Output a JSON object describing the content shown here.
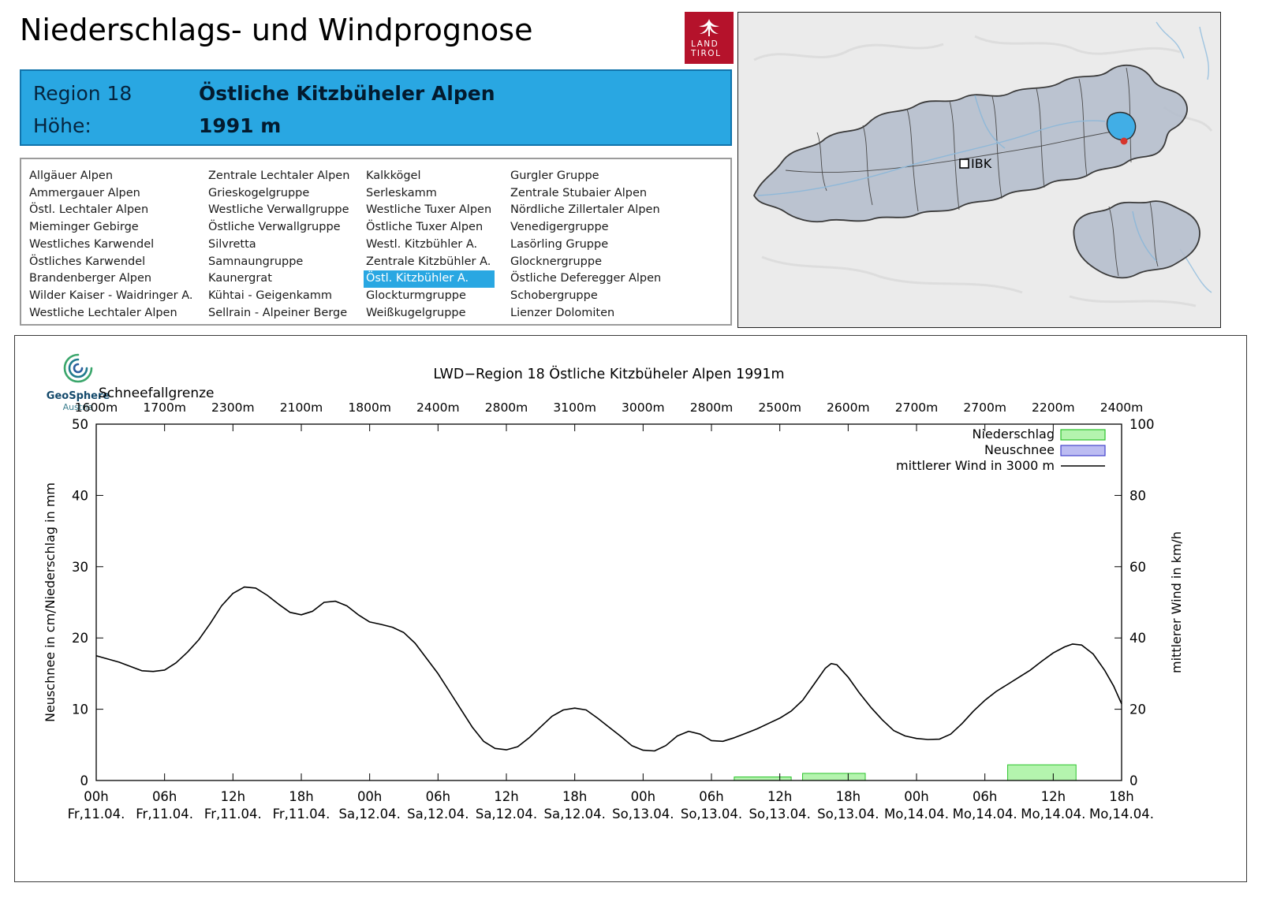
{
  "header": {
    "title": "Niederschlags- und Windprognose"
  },
  "logo": {
    "land": "LAND",
    "tirol": "TIROL"
  },
  "map": {
    "ibk_label": "IBK"
  },
  "geosphere": {
    "name": "GeoSphere",
    "sub": "Austria"
  },
  "region_box": {
    "region_label": "Region 18",
    "region_name": "Östliche Kitzbüheler Alpen",
    "hoehe_label": "Höhe:",
    "hoehe_value": "1991 m"
  },
  "region_list": {
    "selected": "Östl. Kitzbühler A.",
    "columns": [
      [
        "Allgäuer Alpen",
        "Ammergauer Alpen",
        "Östl. Lechtaler Alpen",
        "Mieminger Gebirge",
        "Westliches Karwendel",
        "Östliches Karwendel",
        "Brandenberger Alpen",
        "Wilder Kaiser - Waidringer A.",
        "Westliche Lechtaler Alpen"
      ],
      [
        "Zentrale Lechtaler Alpen",
        "Grieskogelgruppe",
        "Westliche Verwallgruppe",
        "Östliche Verwallgruppe",
        "Silvretta",
        "Samnaungruppe",
        "Kaunergrat",
        "Kühtai - Geigenkamm",
        "Sellrain - Alpeiner Berge"
      ],
      [
        "Kalkkögel",
        "Serleskamm",
        "Westliche Tuxer Alpen",
        "Östliche Tuxer Alpen",
        "Westl. Kitzbühler A.",
        "Zentrale Kitzbühler A.",
        "Östl. Kitzbühler A.",
        "Glockturmgruppe",
        "Weißkugelgruppe"
      ],
      [
        "Gurgler Gruppe",
        "Zentrale Stubaier Alpen",
        "Nördliche Zillertaler Alpen",
        "Venedigergruppe",
        "Lasörling Gruppe",
        "Glocknergruppe",
        "Östliche Deferegger Alpen",
        "Schobergruppe",
        "Lienzer Dolomiten"
      ]
    ]
  },
  "colors": {
    "accent_blue": "#29a7e2",
    "tirol_red": "#b5122b",
    "precip_fill": "#b4f4ae",
    "precip_stroke": "#2cc32c",
    "neuschnee_fill": "#bcbcf2",
    "neuschnee_stroke": "#4444cc",
    "wind_line": "#000000"
  },
  "chart_data": {
    "type": "line",
    "title": "LWD−Region 18 Östliche Kitzbüheler Alpen 1991m",
    "snowline_label": "Schneefallgrenze",
    "snowline_values": [
      "1600m",
      "1700m",
      "2300m",
      "2100m",
      "1800m",
      "2400m",
      "2800m",
      "3100m",
      "3000m",
      "2800m",
      "2500m",
      "2600m",
      "2700m",
      "2700m",
      "2200m",
      "2400m"
    ],
    "ylabel_left": "Neuschnee in cm/Niederschlag in mm",
    "ylabel_right": "mittlerer Wind in km/h",
    "ylim_left": [
      0,
      50
    ],
    "ylim_right": [
      0,
      100
    ],
    "yticks_left": [
      0,
      10,
      20,
      30,
      40,
      50
    ],
    "yticks_right": [
      0,
      20,
      40,
      60,
      80,
      100
    ],
    "x_hours_range": [
      0,
      90
    ],
    "xticks": [
      {
        "hour": 0,
        "top": "00h",
        "bottom": "Fr,11.04."
      },
      {
        "hour": 6,
        "top": "06h",
        "bottom": "Fr,11.04."
      },
      {
        "hour": 12,
        "top": "12h",
        "bottom": "Fr,11.04."
      },
      {
        "hour": 18,
        "top": "18h",
        "bottom": "Fr,11.04."
      },
      {
        "hour": 24,
        "top": "00h",
        "bottom": "Sa,12.04."
      },
      {
        "hour": 30,
        "top": "06h",
        "bottom": "Sa,12.04."
      },
      {
        "hour": 36,
        "top": "12h",
        "bottom": "Sa,12.04."
      },
      {
        "hour": 42,
        "top": "18h",
        "bottom": "Sa,12.04."
      },
      {
        "hour": 48,
        "top": "00h",
        "bottom": "So,13.04."
      },
      {
        "hour": 54,
        "top": "06h",
        "bottom": "So,13.04."
      },
      {
        "hour": 60,
        "top": "12h",
        "bottom": "So,13.04."
      },
      {
        "hour": 66,
        "top": "18h",
        "bottom": "So,13.04."
      },
      {
        "hour": 72,
        "top": "00h",
        "bottom": "Mo,14.04."
      },
      {
        "hour": 78,
        "top": "06h",
        "bottom": "Mo,14.04."
      },
      {
        "hour": 84,
        "top": "12h",
        "bottom": "Mo,14.04."
      },
      {
        "hour": 90,
        "top": "18h",
        "bottom": "Mo,14.04."
      }
    ],
    "legend": [
      {
        "label": "Niederschlag",
        "type": "box",
        "fill": "#b4f4ae",
        "stroke": "#2cc32c"
      },
      {
        "label": "Neuschnee",
        "type": "box",
        "fill": "#bcbcf2",
        "stroke": "#4444cc"
      },
      {
        "label": "mittlerer Wind in 3000 m",
        "type": "line",
        "stroke": "#000000"
      }
    ],
    "series": [
      {
        "name": "mittlerer Wind in 3000 m",
        "type": "line",
        "axis": "right",
        "unit": "km/h",
        "points": [
          [
            0,
            35
          ],
          [
            2,
            33.2
          ],
          [
            4,
            30.8
          ],
          [
            5,
            30.6
          ],
          [
            6,
            31
          ],
          [
            7,
            33
          ],
          [
            8,
            36
          ],
          [
            9,
            39.5
          ],
          [
            10,
            44
          ],
          [
            11,
            49
          ],
          [
            12,
            52.5
          ],
          [
            13,
            54.3
          ],
          [
            14,
            54
          ],
          [
            15,
            52
          ],
          [
            16,
            49.5
          ],
          [
            17,
            47.2
          ],
          [
            18,
            46.5
          ],
          [
            19,
            47.5
          ],
          [
            20,
            50
          ],
          [
            21,
            50.3
          ],
          [
            22,
            49
          ],
          [
            23,
            46.5
          ],
          [
            24,
            44.5
          ],
          [
            25,
            43.8
          ],
          [
            26,
            43
          ],
          [
            27,
            41.5
          ],
          [
            28,
            38.5
          ],
          [
            30,
            30
          ],
          [
            31,
            25
          ],
          [
            32,
            20
          ],
          [
            33,
            15
          ],
          [
            34,
            11
          ],
          [
            35,
            9
          ],
          [
            36,
            8.6
          ],
          [
            37,
            9.5
          ],
          [
            38,
            12
          ],
          [
            39,
            15
          ],
          [
            40,
            18
          ],
          [
            41,
            19.8
          ],
          [
            42,
            20.3
          ],
          [
            43,
            19.8
          ],
          [
            44,
            17.5
          ],
          [
            45,
            15
          ],
          [
            46,
            12.5
          ],
          [
            47,
            9.8
          ],
          [
            48,
            8.5
          ],
          [
            49,
            8.3
          ],
          [
            50,
            9.8
          ],
          [
            51,
            12.5
          ],
          [
            52,
            13.8
          ],
          [
            53,
            13
          ],
          [
            54,
            11.2
          ],
          [
            55,
            11
          ],
          [
            56,
            12
          ],
          [
            57,
            13.2
          ],
          [
            58,
            14.5
          ],
          [
            59,
            16
          ],
          [
            60,
            17.5
          ],
          [
            61,
            19.5
          ],
          [
            62,
            22.5
          ],
          [
            63,
            27
          ],
          [
            64,
            31.5
          ],
          [
            64.5,
            32.8
          ],
          [
            65,
            32.5
          ],
          [
            66,
            29
          ],
          [
            67,
            24.5
          ],
          [
            68,
            20.5
          ],
          [
            69,
            17
          ],
          [
            70,
            14
          ],
          [
            71,
            12.5
          ],
          [
            72,
            11.8
          ],
          [
            73,
            11.5
          ],
          [
            74,
            11.6
          ],
          [
            75,
            13
          ],
          [
            76,
            16
          ],
          [
            77,
            19.5
          ],
          [
            78,
            22.5
          ],
          [
            79,
            25
          ],
          [
            80,
            27
          ],
          [
            81,
            29
          ],
          [
            82,
            31
          ],
          [
            83,
            33.5
          ],
          [
            84,
            35.8
          ],
          [
            85,
            37.5
          ],
          [
            85.7,
            38.3
          ],
          [
            86.5,
            38
          ],
          [
            87.5,
            35.5
          ],
          [
            88.5,
            31
          ],
          [
            89.3,
            26.5
          ],
          [
            90,
            21.5
          ]
        ]
      },
      {
        "name": "Niederschlag",
        "type": "bars",
        "axis": "left",
        "unit": "mm",
        "bars": [
          {
            "from_hour": 56,
            "to_hour": 61,
            "value": 0.5
          },
          {
            "from_hour": 62,
            "to_hour": 67.5,
            "value": 1.0
          },
          {
            "from_hour": 80,
            "to_hour": 86,
            "value": 2.2
          }
        ]
      },
      {
        "name": "Neuschnee",
        "type": "bars",
        "axis": "left",
        "unit": "cm",
        "bars": []
      }
    ]
  }
}
